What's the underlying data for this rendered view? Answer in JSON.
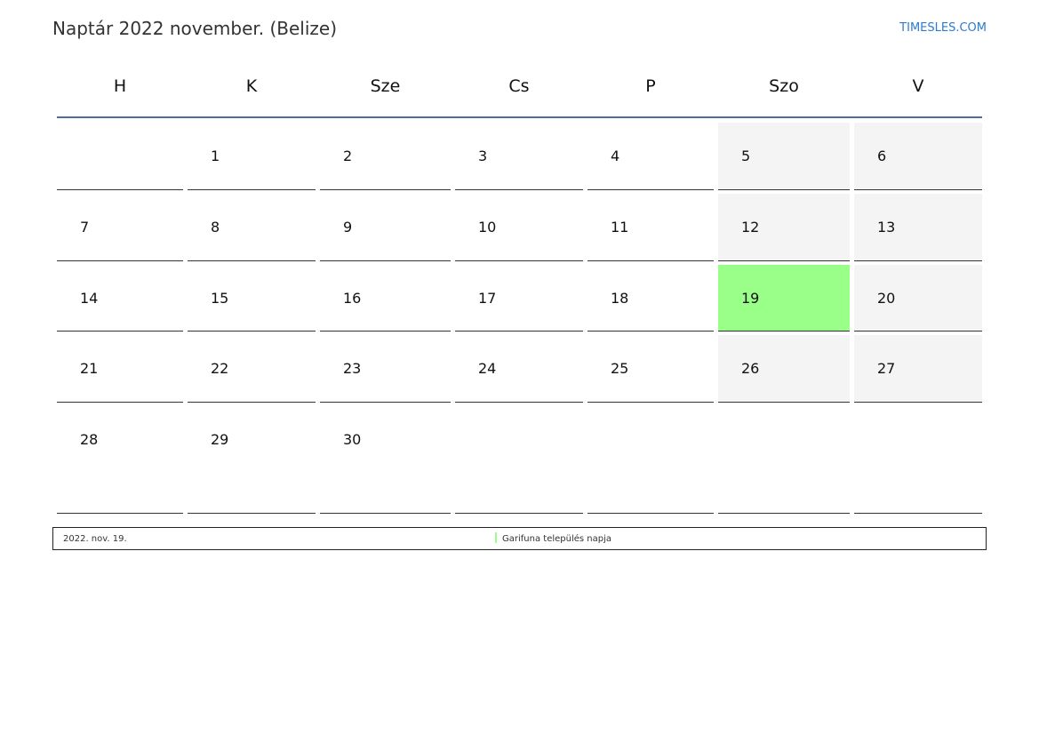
{
  "title": "Naptár 2022 november. (Belize)",
  "brand": "TIMESLES.COM",
  "colors": {
    "weekend": "#f4f4f4",
    "holiday": "#99ff88",
    "rule": "#4d6d9a"
  },
  "weekdays": [
    "H",
    "K",
    "Sze",
    "Cs",
    "P",
    "Szo",
    "V"
  ],
  "weeks": [
    [
      "",
      "1",
      "2",
      "3",
      "4",
      "5",
      "6"
    ],
    [
      "7",
      "8",
      "9",
      "10",
      "11",
      "12",
      "13"
    ],
    [
      "14",
      "15",
      "16",
      "17",
      "18",
      "19",
      "20"
    ],
    [
      "21",
      "22",
      "23",
      "24",
      "25",
      "26",
      "27"
    ],
    [
      "28",
      "29",
      "30",
      "",
      "",
      "",
      ""
    ]
  ],
  "holidays": [
    {
      "day": "19",
      "date": "2022. nov. 19.",
      "name": "Garifuna település napja"
    }
  ]
}
